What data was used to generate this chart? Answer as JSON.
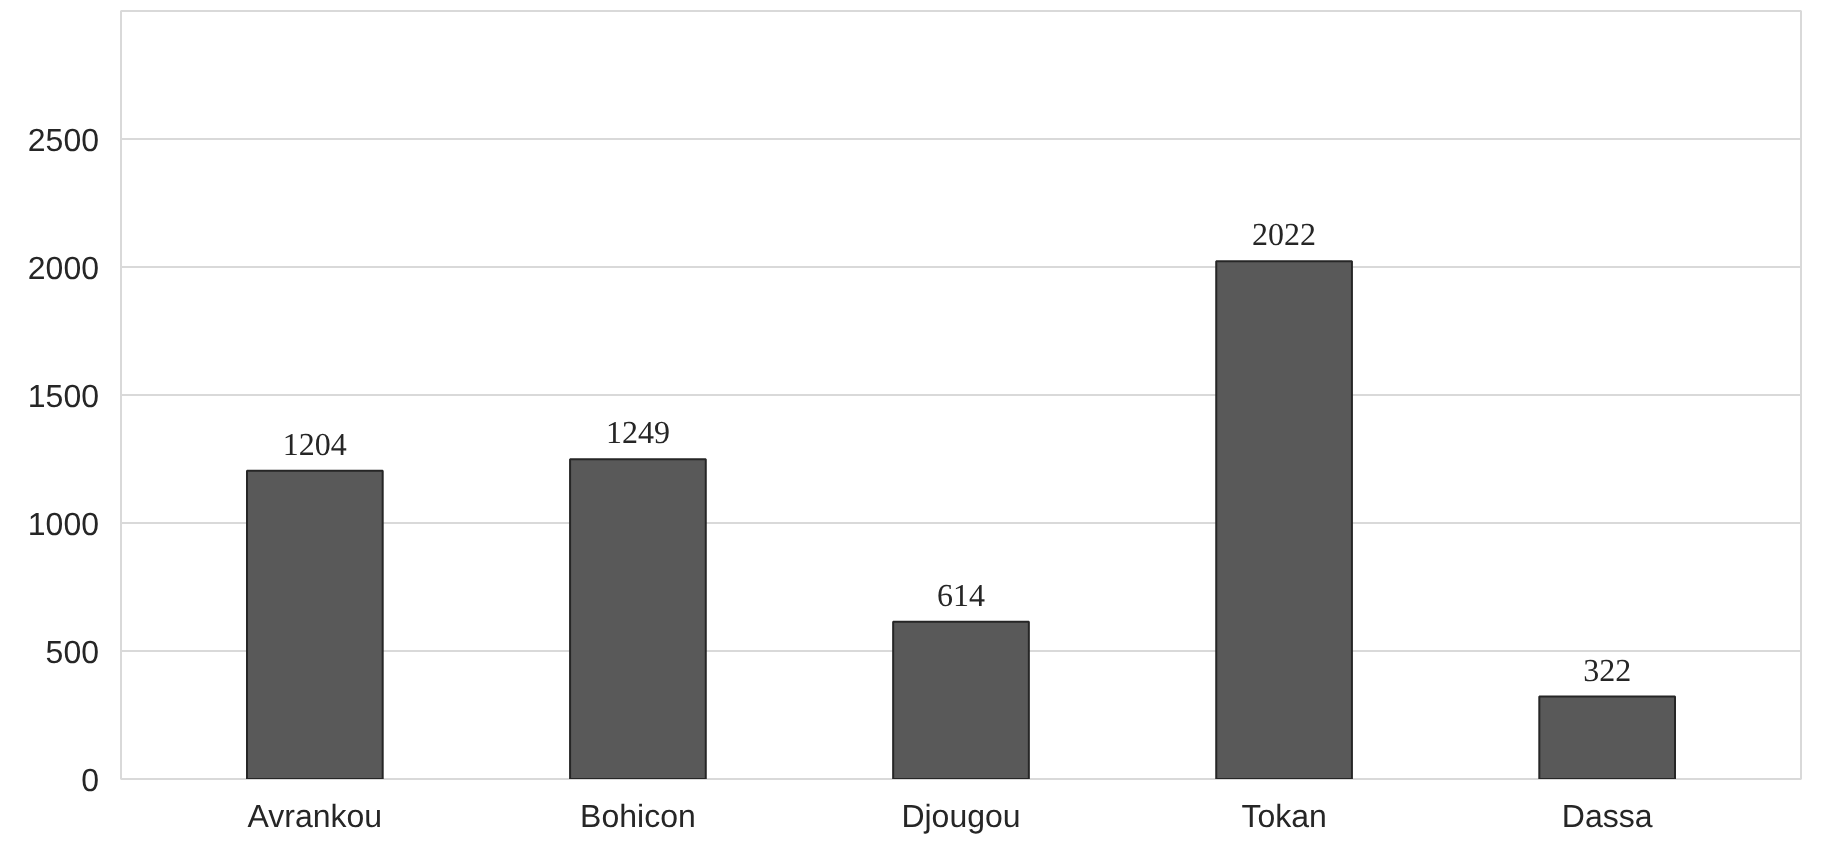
{
  "chart_data": {
    "type": "bar",
    "categories": [
      "Avrankou",
      "Bohicon",
      "Djougou",
      "Tokan",
      "Dassa"
    ],
    "values": [
      1204,
      1249,
      614,
      2022,
      322
    ],
    "color": "#595959",
    "ylim": [
      0,
      3000
    ],
    "yticks": [
      0,
      500,
      1000,
      1500,
      2000,
      2500,
      {
        "value": 3000,
        "label": null
      }
    ],
    "grid": "y",
    "data_labels": true
  }
}
